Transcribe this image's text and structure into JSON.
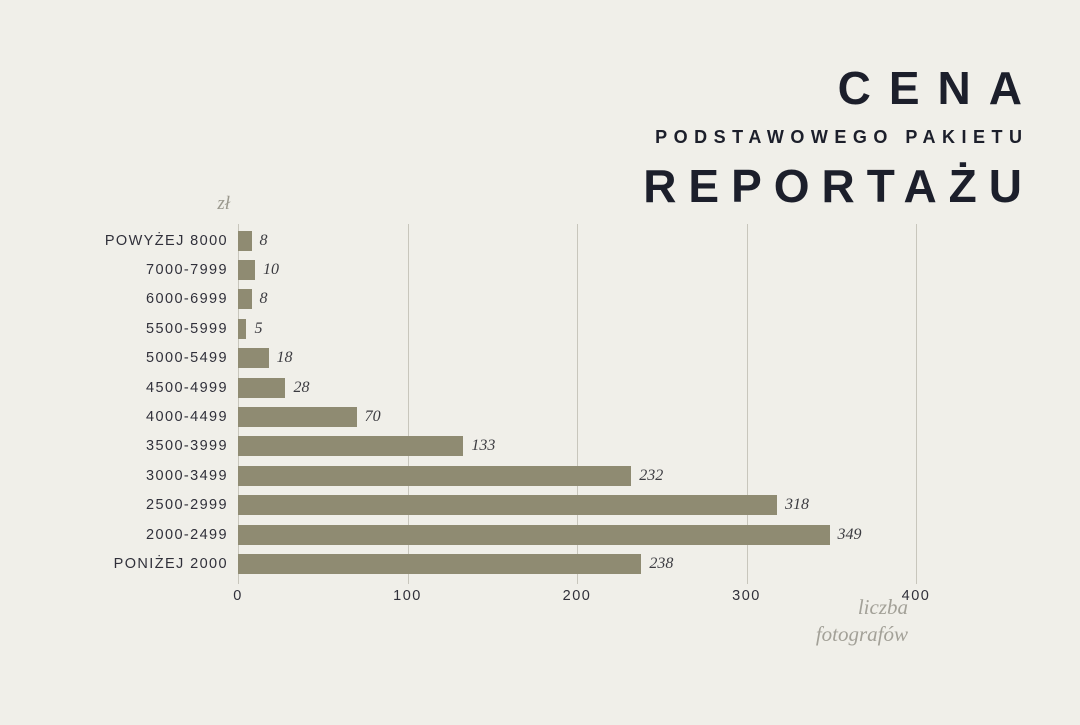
{
  "page": {
    "background_color": "#f0efe9"
  },
  "title": {
    "line1": "CENA",
    "line2": "PODSTAWOWEGO PAKIETU",
    "line3": "REPORTAŻU"
  },
  "chart_data": {
    "type": "bar",
    "orientation": "horizontal",
    "title": "CENA PODSTAWOWEGO PAKIETU REPORTAŻU",
    "categories": [
      "POWYŻEJ 8000",
      "7000-7999",
      "6000-6999",
      "5500-5999",
      "5000-5499",
      "4500-4999",
      "4000-4499",
      "3500-3999",
      "3000-3499",
      "2500-2999",
      "2000-2499",
      "PONIŻEJ 2000"
    ],
    "values": [
      8,
      10,
      8,
      5,
      18,
      28,
      70,
      133,
      232,
      318,
      349,
      238
    ],
    "x_ticks": [
      0,
      100,
      200,
      300,
      400
    ],
    "xlim": [
      0,
      400
    ],
    "y_axis_label": "zł",
    "x_axis_label": "liczba fotografów",
    "x_axis_label_lines": [
      "liczba",
      "fotografów"
    ],
    "bar_color": "#8f8b72",
    "gridline_color": "#c8c6bc",
    "grid": true,
    "legend_position": "none"
  }
}
